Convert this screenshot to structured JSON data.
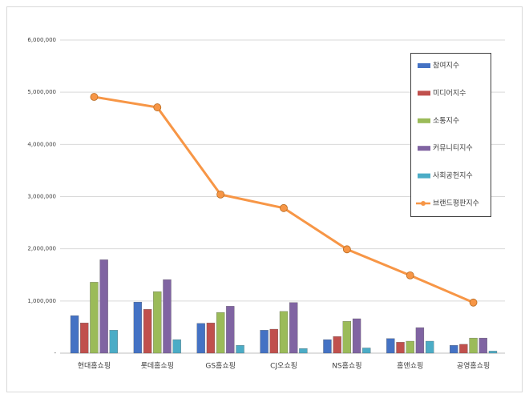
{
  "chart_data": {
    "type": "bar",
    "categories": [
      "현대홈쇼핑",
      "롯데홈쇼핑",
      "GS홈쇼핑",
      "CJ오쇼핑",
      "NS홈쇼핑",
      "홈앤쇼핑",
      "공영홈쇼핑"
    ],
    "series": [
      {
        "name": "참여지수",
        "color": "#4472c4",
        "values": [
          720000,
          980000,
          570000,
          440000,
          260000,
          280000,
          150000
        ]
      },
      {
        "name": "미디어지수",
        "color": "#c0504d",
        "values": [
          580000,
          840000,
          580000,
          460000,
          320000,
          210000,
          170000
        ]
      },
      {
        "name": "소통지수",
        "color": "#9bbb59",
        "values": [
          1360000,
          1180000,
          780000,
          800000,
          610000,
          230000,
          290000
        ]
      },
      {
        "name": "커뮤니티지수",
        "color": "#8064a2",
        "values": [
          1790000,
          1410000,
          900000,
          970000,
          660000,
          490000,
          290000
        ]
      },
      {
        "name": "사회공헌지수",
        "color": "#4bacc6",
        "values": [
          440000,
          260000,
          150000,
          90000,
          100000,
          230000,
          40000
        ]
      },
      {
        "name": "브랜드평판지수",
        "color": "#f79646",
        "type": "line",
        "values": [
          4910000,
          4710000,
          3040000,
          2780000,
          1990000,
          1490000,
          970000
        ]
      }
    ],
    "ylim": [
      0,
      6000000
    ],
    "yticks": [
      {
        "value": 0,
        "label": "-"
      },
      {
        "value": 1000000,
        "label": "1,000,000"
      },
      {
        "value": 2000000,
        "label": "2,000,000"
      },
      {
        "value": 3000000,
        "label": "3,000,000"
      },
      {
        "value": 4000000,
        "label": "4,000,000"
      },
      {
        "value": 5000000,
        "label": "5,000,000"
      },
      {
        "value": 6000000,
        "label": "6,000,000"
      }
    ],
    "grid": true,
    "legend": "right"
  }
}
